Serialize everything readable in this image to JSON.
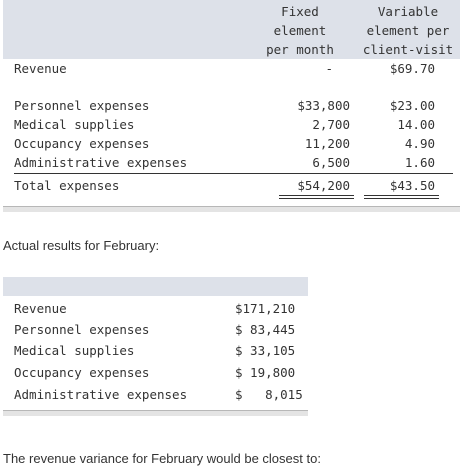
{
  "table1": {
    "headers": {
      "fixed": [
        "Fixed",
        "element",
        "per month"
      ],
      "variable": [
        "Variable",
        "element per",
        "client-visit"
      ]
    },
    "rows": [
      {
        "label": "Revenue",
        "fixed": "-",
        "variable": "$69.70"
      },
      {
        "label": "Personnel expenses",
        "fixed": "$33,800",
        "variable": "$23.00"
      },
      {
        "label": "Medical supplies",
        "fixed": "2,700",
        "variable": "14.00"
      },
      {
        "label": "Occupancy expenses",
        "fixed": "11,200",
        "variable": "4.90"
      },
      {
        "label": "Administrative expenses",
        "fixed": "6,500",
        "variable": "1.60"
      },
      {
        "label": "Total expenses",
        "fixed": "$54,200",
        "variable": "$43.50"
      }
    ]
  },
  "caption": "Actual results for February:",
  "table2": {
    "rows": [
      {
        "label": "Revenue",
        "value": "$171,210"
      },
      {
        "label": "Personnel expenses",
        "value": "$ 83,445"
      },
      {
        "label": "Medical supplies",
        "value": "$ 33,105"
      },
      {
        "label": "Occupancy expenses",
        "value": "$ 19,800"
      },
      {
        "label": "Administrative expenses",
        "value": "$   8,015"
      }
    ]
  },
  "question": "The revenue variance for February would be closest to:"
}
